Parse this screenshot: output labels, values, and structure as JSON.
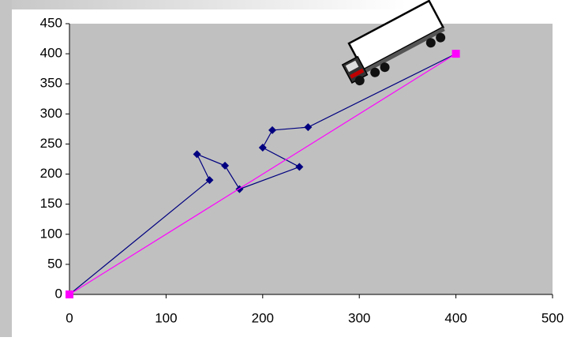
{
  "chart_data": {
    "type": "scatter",
    "series": [
      {
        "color": "#000080",
        "marker": "diamond",
        "x": [
          0,
          145,
          132,
          161,
          176,
          238,
          200,
          210,
          247,
          400
        ],
        "values": [
          0,
          190,
          233,
          214,
          175,
          212,
          244,
          273,
          278,
          400
        ]
      },
      {
        "color": "#ff00ff",
        "marker": "square",
        "x": [
          0,
          400
        ],
        "values": [
          0,
          400
        ]
      }
    ],
    "xlim": [
      0,
      500
    ],
    "xticks": [
      0,
      100,
      200,
      300,
      400,
      500
    ],
    "ylim": [
      0,
      450
    ],
    "yticks": [
      0,
      50,
      100,
      150,
      200,
      250,
      300,
      350,
      400,
      450
    ],
    "grid": false,
    "plot_background": "#c0c0c0"
  }
}
